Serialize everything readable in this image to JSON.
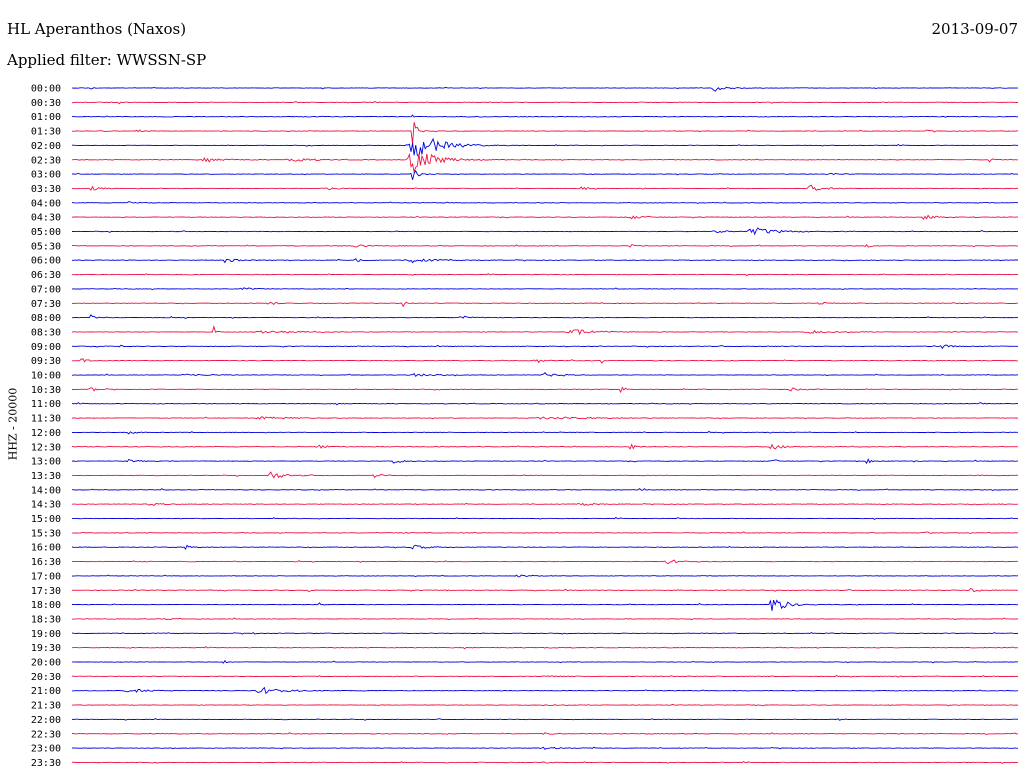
{
  "header": {
    "station": "HL Aperanthos (Naxos)",
    "filter": "Applied filter: WWSSN-SP",
    "date": "2013-09-07"
  },
  "channel_label": "HHZ - 20000",
  "colors": {
    "even_trace": "#0000dd",
    "odd_trace": "#ee1144",
    "text": "#000000"
  },
  "chart_data": {
    "type": "line",
    "title": "HL Aperanthos (Naxos)",
    "subtitle": "Applied filter: WWSSN-SP",
    "ylabel": "HHZ - 20000",
    "xlabel": "",
    "trace_minutes": 30,
    "rows": [
      {
        "time": "00:00",
        "events": [
          [
            0.68,
            0.45,
            0.012
          ],
          [
            0.02,
            0.15,
            0.002
          ]
        ]
      },
      {
        "time": "00:30",
        "events": [
          [
            0.05,
            0.3,
            0.002
          ]
        ]
      },
      {
        "time": "01:00",
        "events": [
          [
            0.36,
            0.2,
            0.002
          ]
        ]
      },
      {
        "time": "01:30",
        "events": [
          [
            0.07,
            0.15,
            0.01
          ],
          [
            0.9,
            0.15,
            0.01
          ],
          [
            0.36,
            1.8,
            0.004
          ]
        ]
      },
      {
        "time": "02:00",
        "events": [
          [
            0.36,
            2.6,
            0.02
          ]
        ]
      },
      {
        "time": "02:30",
        "events": [
          [
            0.36,
            1.8,
            0.02
          ],
          [
            0.23,
            0.35,
            0.02
          ],
          [
            0.14,
            0.2,
            0.02
          ],
          [
            0.97,
            0.3,
            0.003
          ]
        ]
      },
      {
        "time": "03:00",
        "events": [
          [
            0.36,
            0.9,
            0.006
          ],
          [
            0.8,
            0.15,
            0.01
          ]
        ]
      },
      {
        "time": "03:30",
        "events": [
          [
            0.78,
            0.5,
            0.012
          ],
          [
            0.02,
            0.25,
            0.01
          ],
          [
            0.27,
            0.2,
            0.01
          ],
          [
            0.54,
            0.2,
            0.008
          ]
        ]
      },
      {
        "time": "04:00",
        "events": [
          [
            0.06,
            0.15,
            0.01
          ]
        ]
      },
      {
        "time": "04:30",
        "events": [
          [
            0.9,
            0.45,
            0.01
          ],
          [
            0.59,
            0.3,
            0.012
          ]
        ]
      },
      {
        "time": "05:00",
        "events": [
          [
            0.72,
            0.6,
            0.02
          ],
          [
            0.68,
            0.25,
            0.01
          ]
        ]
      },
      {
        "time": "05:30",
        "events": [
          [
            0.84,
            0.5,
            0.003
          ],
          [
            0.59,
            0.35,
            0.004
          ],
          [
            0.3,
            0.2,
            0.01
          ]
        ]
      },
      {
        "time": "06:00",
        "events": [
          [
            0.16,
            0.4,
            0.01
          ],
          [
            0.3,
            0.4,
            0.006
          ],
          [
            0.36,
            0.3,
            0.02
          ]
        ]
      },
      {
        "time": "06:30",
        "events": [
          [
            0.5,
            0.12,
            0.01
          ]
        ]
      },
      {
        "time": "07:00",
        "events": [
          [
            0.18,
            0.25,
            0.008
          ]
        ]
      },
      {
        "time": "07:30",
        "events": [
          [
            0.21,
            0.8,
            0.003
          ],
          [
            0.35,
            0.4,
            0.003
          ],
          [
            0.79,
            0.3,
            0.006
          ]
        ]
      },
      {
        "time": "08:00",
        "events": [
          [
            0.02,
            0.5,
            0.003
          ],
          [
            0.41,
            0.25,
            0.01
          ]
        ]
      },
      {
        "time": "08:30",
        "events": [
          [
            0.15,
            0.8,
            0.002
          ],
          [
            0.53,
            0.4,
            0.02
          ],
          [
            0.2,
            0.2,
            0.03
          ],
          [
            0.78,
            0.2,
            0.02
          ]
        ]
      },
      {
        "time": "09:00",
        "events": [
          [
            0.05,
            0.55,
            0.002
          ],
          [
            0.92,
            0.3,
            0.006
          ]
        ]
      },
      {
        "time": "09:30",
        "events": [
          [
            0.01,
            0.35,
            0.006
          ],
          [
            0.49,
            0.4,
            0.006
          ],
          [
            0.56,
            0.4,
            0.002
          ]
        ]
      },
      {
        "time": "10:00",
        "events": [
          [
            0.5,
            0.3,
            0.012
          ],
          [
            0.12,
            0.15,
            0.02
          ],
          [
            0.36,
            0.2,
            0.02
          ]
        ]
      },
      {
        "time": "10:30",
        "events": [
          [
            0.58,
            0.45,
            0.004
          ],
          [
            0.02,
            0.35,
            0.006
          ],
          [
            0.76,
            0.2,
            0.01
          ]
        ]
      },
      {
        "time": "11:00",
        "events": [
          [
            0.96,
            1.0,
            0.003
          ]
        ]
      },
      {
        "time": "11:30",
        "events": [
          [
            0.5,
            0.15,
            0.05
          ],
          [
            0.2,
            0.15,
            0.03
          ]
        ]
      },
      {
        "time": "12:00",
        "events": [
          [
            0.06,
            0.3,
            0.006
          ]
        ]
      },
      {
        "time": "12:30",
        "events": [
          [
            0.59,
            0.8,
            0.004
          ],
          [
            0.74,
            0.4,
            0.01
          ],
          [
            0.26,
            0.3,
            0.01
          ]
        ]
      },
      {
        "time": "13:00",
        "events": [
          [
            0.84,
            1.2,
            0.002
          ],
          [
            0.34,
            0.5,
            0.006
          ],
          [
            0.74,
            0.4,
            0.004
          ],
          [
            0.89,
            0.3,
            0.002
          ],
          [
            0.06,
            0.2,
            0.01
          ]
        ]
      },
      {
        "time": "13:30",
        "events": [
          [
            0.21,
            0.7,
            0.01
          ],
          [
            0.32,
            0.35,
            0.006
          ]
        ]
      },
      {
        "time": "14:00",
        "events": [
          [
            0.6,
            0.15,
            0.003
          ]
        ]
      },
      {
        "time": "14:30",
        "events": [
          [
            0.54,
            0.25,
            0.01
          ],
          [
            0.08,
            0.2,
            0.01
          ]
        ]
      },
      {
        "time": "15:00",
        "events": [
          [
            0.64,
            0.25,
            0.003
          ]
        ]
      },
      {
        "time": "15:30",
        "events": [
          [
            0.9,
            0.4,
            0.004
          ],
          [
            0.35,
            0.2,
            0.003
          ]
        ]
      },
      {
        "time": "16:00",
        "events": [
          [
            0.12,
            0.35,
            0.006
          ],
          [
            0.36,
            0.4,
            0.01
          ]
        ]
      },
      {
        "time": "16:30",
        "events": [
          [
            0.63,
            0.3,
            0.012
          ]
        ]
      },
      {
        "time": "17:00",
        "events": [
          [
            0.47,
            0.2,
            0.01
          ]
        ]
      },
      {
        "time": "17:30",
        "events": [
          [
            0.95,
            0.3,
            0.01
          ],
          [
            0.25,
            0.3,
            0.002
          ]
        ]
      },
      {
        "time": "18:00",
        "events": [
          [
            0.74,
            1.3,
            0.012
          ],
          [
            0.26,
            0.5,
            0.004
          ]
        ]
      },
      {
        "time": "18:30",
        "events": [
          [
            0.1,
            0.12,
            0.01
          ]
        ]
      },
      {
        "time": "19:00",
        "events": [
          [
            0.19,
            0.4,
            0.002
          ]
        ]
      },
      {
        "time": "19:30",
        "events": [
          [
            0.5,
            0.12,
            0.01
          ]
        ]
      },
      {
        "time": "20:00",
        "events": [
          [
            0.16,
            0.3,
            0.003
          ]
        ]
      },
      {
        "time": "20:30",
        "events": [
          [
            0.5,
            0.1,
            0.01
          ]
        ]
      },
      {
        "time": "21:00",
        "events": [
          [
            0.2,
            0.5,
            0.02
          ],
          [
            0.06,
            0.25,
            0.02
          ]
        ]
      },
      {
        "time": "21:30",
        "events": [
          [
            0.5,
            0.1,
            0.01
          ]
        ]
      },
      {
        "time": "22:00",
        "events": [
          [
            0.81,
            0.3,
            0.002
          ],
          [
            0.53,
            0.25,
            0.002
          ]
        ]
      },
      {
        "time": "22:30",
        "events": [
          [
            0.5,
            0.1,
            0.01
          ]
        ]
      },
      {
        "time": "23:00",
        "events": [
          [
            0.5,
            0.12,
            0.02
          ]
        ]
      },
      {
        "time": "23:30",
        "events": [
          [
            0.5,
            0.1,
            0.01
          ]
        ]
      }
    ]
  }
}
